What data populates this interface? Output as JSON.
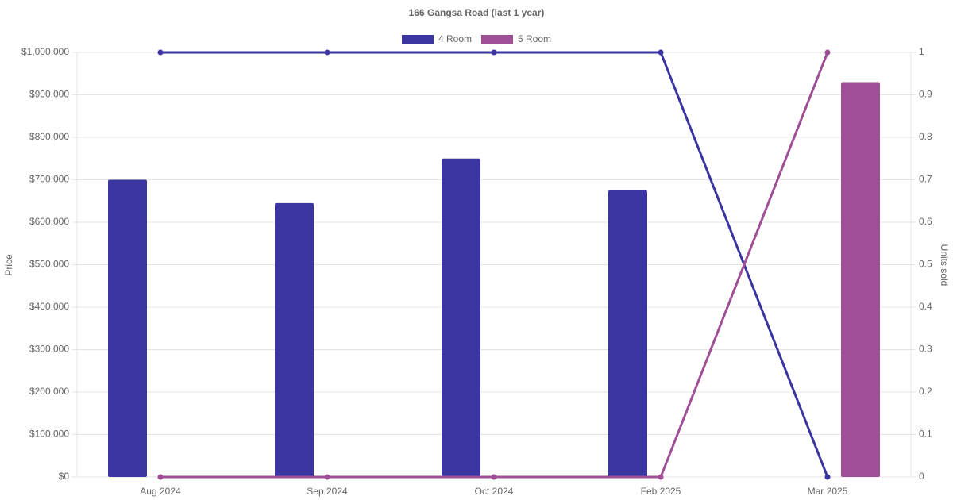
{
  "chart_data": {
    "type": "bar-line",
    "title": "166 Gangsa Road (last 1 year)",
    "categories": [
      "Aug 2024",
      "Sep 2024",
      "Oct 2024",
      "Feb 2025",
      "Mar 2025"
    ],
    "series": [
      {
        "name": "4 Room",
        "color": "#3a35a0",
        "values": [
          700000,
          645000,
          750000,
          675000,
          null
        ],
        "units_sold": [
          1,
          1,
          1,
          1,
          0
        ]
      },
      {
        "name": "5 Room",
        "color": "#9e4f96",
        "values": [
          null,
          null,
          null,
          null,
          930000
        ],
        "units_sold": [
          0,
          0,
          0,
          0,
          1
        ]
      }
    ],
    "y_label": "Price",
    "y2_label": "Units sold",
    "ylim": [
      0,
      1000000
    ],
    "yticks": [
      {
        "value": 0,
        "label": "$0"
      },
      {
        "value": 100000,
        "label": "$100,000"
      },
      {
        "value": 200000,
        "label": "$200,000"
      },
      {
        "value": 300000,
        "label": "$300,000"
      },
      {
        "value": 400000,
        "label": "$400,000"
      },
      {
        "value": 500000,
        "label": "$500,000"
      },
      {
        "value": 600000,
        "label": "$600,000"
      },
      {
        "value": 700000,
        "label": "$700,000"
      },
      {
        "value": 800000,
        "label": "$800,000"
      },
      {
        "value": 900000,
        "label": "$900,000"
      },
      {
        "value": 1000000,
        "label": "$1,000,000"
      }
    ],
    "y2lim": [
      0,
      1
    ],
    "y2ticks": [
      0,
      0.1,
      0.2,
      0.3,
      0.4,
      0.5,
      0.6,
      0.7,
      0.8,
      0.9,
      1
    ],
    "grid": true,
    "legend": "top"
  }
}
